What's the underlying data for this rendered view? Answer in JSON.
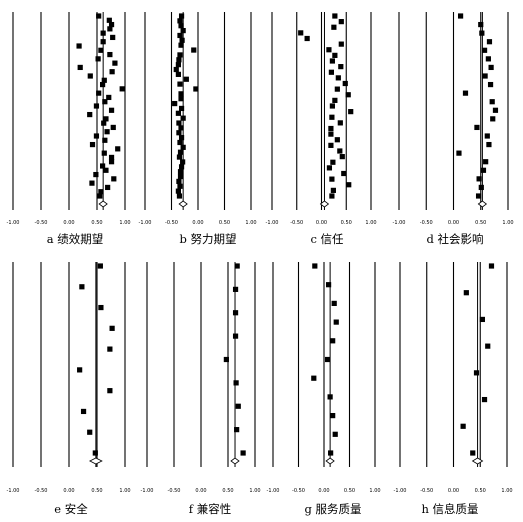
{
  "chart_data": [
    {
      "type": "scatter",
      "caption": "a 绩效期望",
      "xticks": [
        "-1.00",
        "-0.50",
        "0.00",
        "0.50",
        "1.00"
      ],
      "xlim": [
        -1.0,
        1.0
      ],
      "effect_sizes": [
        0.53,
        0.72,
        0.76,
        0.73,
        0.61,
        0.78,
        0.61,
        0.18,
        0.57,
        0.73,
        0.52,
        0.82,
        0.2,
        0.77,
        0.38,
        0.63,
        0.6,
        0.95,
        0.53,
        0.71,
        0.64,
        0.49,
        0.76,
        0.37,
        0.66,
        0.62,
        0.79,
        0.68,
        0.49,
        0.64,
        0.42,
        0.87,
        0.63,
        0.76,
        0.76,
        0.6,
        0.66,
        0.48,
        0.8,
        0.41,
        0.69,
        0.57,
        0.55
      ],
      "pooled_effect": 0.61
    },
    {
      "type": "scatter",
      "caption": "b 努力期望",
      "xticks": [
        "-1.00",
        "-0.50",
        "0.00",
        "0.50",
        "1.00"
      ],
      "xlim": [
        -1.0,
        1.0
      ],
      "effect_sizes": [
        -0.31,
        -0.34,
        -0.32,
        -0.28,
        -0.34,
        -0.3,
        -0.32,
        -0.08,
        -0.34,
        -0.36,
        -0.37,
        -0.41,
        -0.37,
        -0.22,
        -0.34,
        -0.04,
        -0.32,
        -0.32,
        -0.44,
        -0.31,
        -0.37,
        -0.28,
        -0.36,
        -0.32,
        -0.36,
        -0.31,
        -0.34,
        -0.28,
        -0.33,
        -0.35,
        -0.29,
        -0.31,
        -0.33,
        -0.33,
        -0.36,
        -0.34,
        -0.37,
        -0.35
      ],
      "pooled_effect": -0.28
    },
    {
      "type": "scatter",
      "caption": "c 信任",
      "xticks": [
        "-1.00",
        "-0.50",
        "0.00",
        "0.50",
        "1.00"
      ],
      "xlim": [
        -1.0,
        1.0
      ],
      "effect_sizes": [
        0.27,
        0.4,
        0.25,
        -0.42,
        -0.29,
        0.4,
        0.15,
        0.27,
        0.22,
        0.39,
        0.2,
        0.34,
        0.48,
        0.32,
        0.54,
        0.27,
        0.22,
        0.59,
        0.21,
        0.38,
        0.19,
        0.19,
        0.32,
        0.19,
        0.37,
        0.42,
        0.23,
        0.16,
        0.45,
        0.21,
        0.55,
        0.24,
        0.21
      ],
      "pooled_effect": 0.06
    },
    {
      "type": "scatter",
      "caption": "d 社会影响",
      "xticks": [
        "-1.00",
        "-0.50",
        "0.00",
        "0.50",
        "1.00"
      ],
      "xlim": [
        -1.0,
        1.0
      ],
      "effect_sizes": [
        0.13,
        0.5,
        0.52,
        0.66,
        0.57,
        0.64,
        0.69,
        0.58,
        0.68,
        0.22,
        0.71,
        0.77,
        0.72,
        0.43,
        0.62,
        0.65,
        0.1,
        0.59,
        0.55,
        0.47,
        0.51,
        0.46
      ],
      "pooled_effect": 0.53
    },
    {
      "type": "scatter",
      "caption": "e 安全",
      "xticks": [
        "-1.00",
        "-0.50",
        "0.00",
        "0.50",
        "1.00"
      ],
      "xlim": [
        -1.0,
        1.0
      ],
      "effect_sizes": [
        0.56,
        0.23,
        0.57,
        0.77,
        0.73,
        0.19,
        0.73,
        0.26,
        0.37,
        0.47
      ],
      "pooled_effect": 0.48
    },
    {
      "type": "scatter",
      "caption": "f 兼容性",
      "xticks": [
        "-1.00",
        "-0.50",
        "0.00",
        "0.50",
        "1.00"
      ],
      "xlim": [
        -1.0,
        1.0
      ],
      "effect_sizes": [
        0.67,
        0.64,
        0.64,
        0.64,
        0.47,
        0.65,
        0.69,
        0.66,
        0.78
      ],
      "pooled_effect": 0.63
    },
    {
      "type": "scatter",
      "caption": "g 服务质量",
      "xticks": [
        "-1.00",
        "-0.50",
        "0.00",
        "0.50",
        "1.00"
      ],
      "xlim": [
        -1.0,
        1.0
      ],
      "effect_sizes": [
        -0.18,
        0.09,
        0.2,
        0.24,
        0.17,
        0.07,
        -0.2,
        0.12,
        0.17,
        0.22,
        0.13
      ],
      "pooled_effect": 0.12
    },
    {
      "type": "scatter",
      "caption": "h 信息质量",
      "xticks": [
        "-1.00",
        "-0.50",
        "0.00",
        "0.50",
        "1.00"
      ],
      "xlim": [
        -1.0,
        1.0
      ],
      "effect_sizes": [
        0.71,
        0.24,
        0.54,
        0.64,
        0.43,
        0.58,
        0.18,
        0.36
      ],
      "pooled_effect": 0.45
    }
  ]
}
